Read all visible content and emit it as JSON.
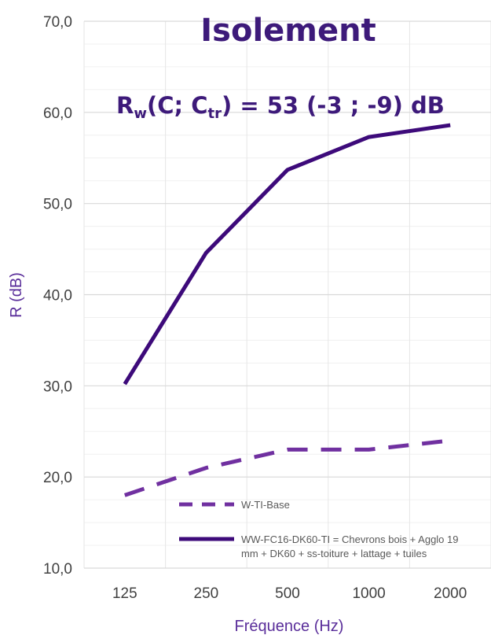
{
  "chart_data": {
    "type": "line",
    "title": "Isolement",
    "subtitle": {
      "r": "R",
      "w": "w",
      "open": "(C; C",
      "tr": "tr",
      "close": ") = 53 (-3 ; -9) dB"
    },
    "xlabel": "Fréquence (Hz)",
    "ylabel": "R (dB)",
    "categories": [
      "125",
      "250",
      "500",
      "1000",
      "2000"
    ],
    "y_ticks": [
      "10,0",
      "20,0",
      "30,0",
      "40,0",
      "50,0",
      "60,0",
      "70,0"
    ],
    "ylim": [
      10,
      70
    ],
    "grid": true,
    "legend_position": "bottom-inside",
    "series": [
      {
        "name": "W-TI-Base",
        "values": [
          18.0,
          21.0,
          23.0,
          23.0,
          24.0
        ],
        "style": "dashed",
        "color": "#7030a0"
      },
      {
        "name": "WW-FC16-DK60-TI = Chevrons bois + Agglo 19 mm + DK60 + ss-toiture + lattage + tuiles",
        "name_lines": [
          "WW-FC16-DK60-TI = Chevrons bois + Agglo 19",
          "mm + DK60 + ss-toiture + lattage + tuiles"
        ],
        "values": [
          30.2,
          44.6,
          53.7,
          57.3,
          58.6
        ],
        "style": "solid",
        "color": "#3d0a7a"
      }
    ]
  }
}
